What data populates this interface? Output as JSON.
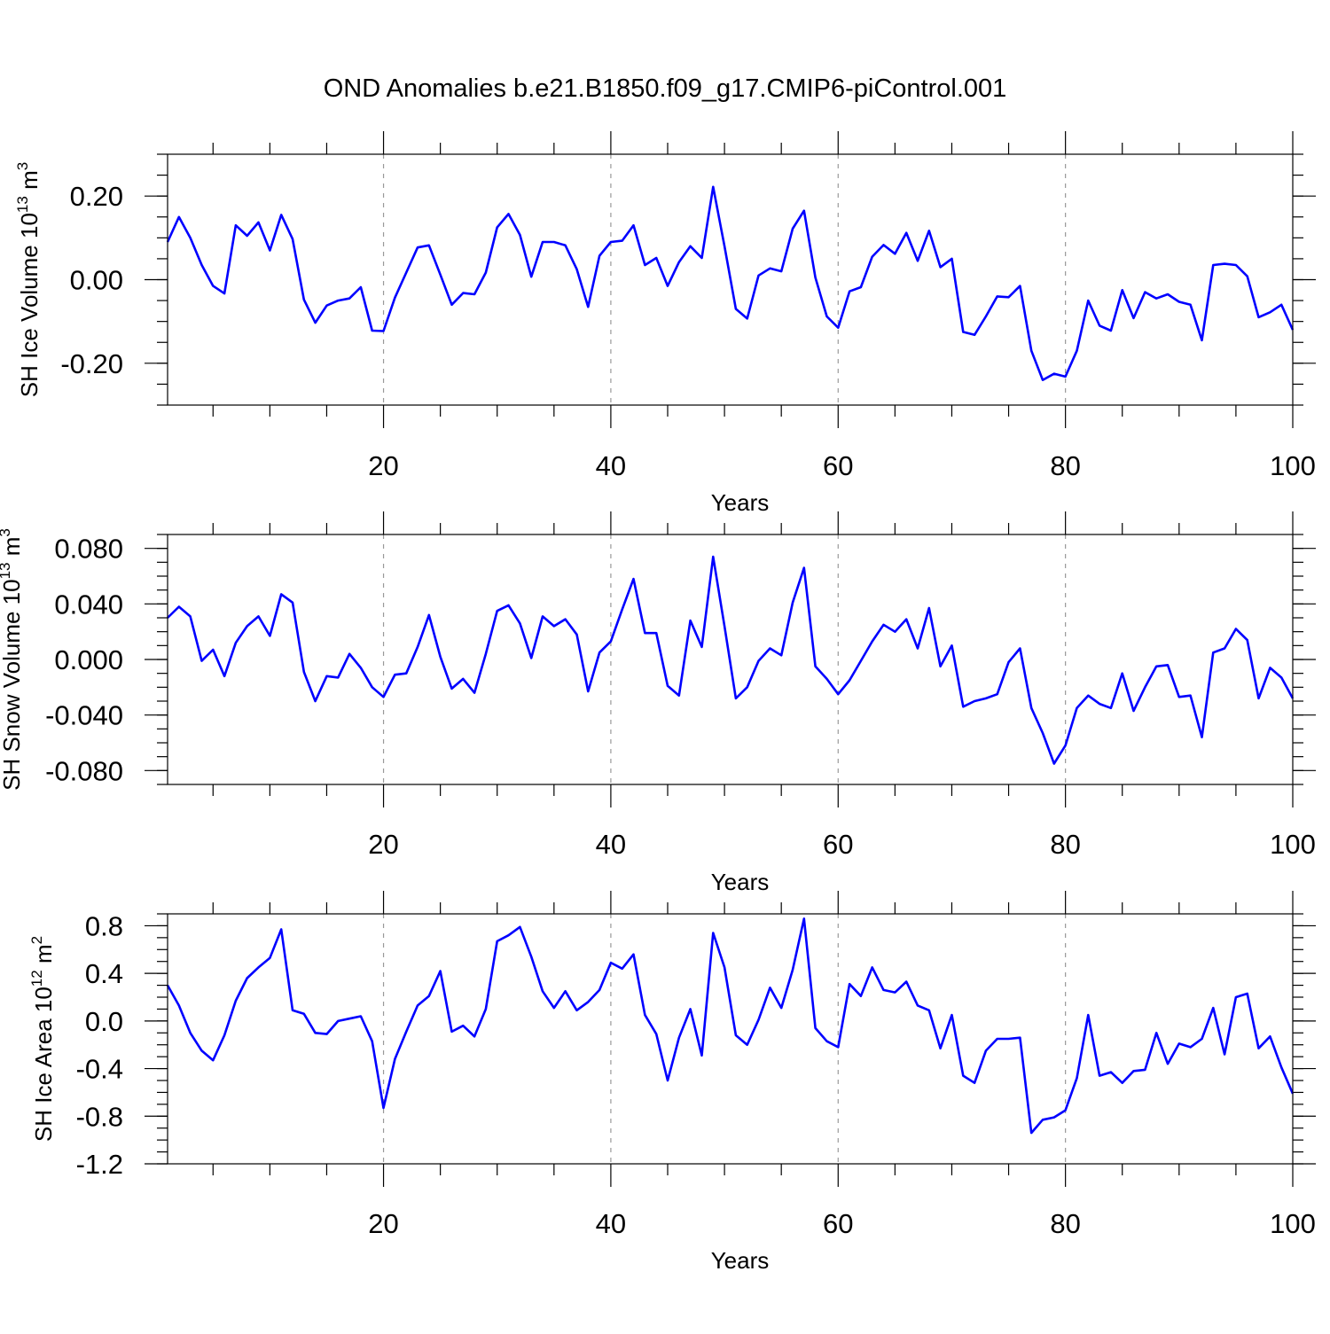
{
  "figure_title": "OND Anomalies b.e21.B1850.f09_g17.CMIP6-piControl.001",
  "colors": {
    "line": "#0000ff",
    "axis": "#000000",
    "grid": "#999999",
    "background": "#ffffff"
  },
  "chart_data": [
    {
      "type": "line",
      "title": "OND Anomalies b.e21.B1850.f09_g17.CMIP6-piControl.001",
      "xlabel": "Years",
      "ylabel_main": "SH Ice Volume 10",
      "ylabel_sup": "13",
      "ylabel_unit": " m",
      "ylabel_unit_sup": "3",
      "xlim": [
        1,
        100
      ],
      "ylim": [
        -0.3,
        0.3
      ],
      "x_ticks": [
        20,
        40,
        60,
        80,
        100
      ],
      "x_tick_labels": [
        "20",
        "40",
        "60",
        "80",
        "100"
      ],
      "y_ticks": [
        -0.2,
        0.0,
        0.2
      ],
      "y_tick_labels": [
        "-0.20",
        "0.00",
        "0.20"
      ],
      "y_minor_step": 0.05,
      "grid_x": [
        20,
        40,
        60,
        80
      ],
      "series": [
        {
          "name": "SH Ice Volume",
          "x": [
            1,
            2,
            3,
            4,
            5,
            6,
            7,
            8,
            9,
            10,
            11,
            12,
            13,
            14,
            15,
            16,
            17,
            18,
            19,
            20,
            21,
            22,
            23,
            24,
            25,
            26,
            27,
            28,
            29,
            30,
            31,
            32,
            33,
            34,
            35,
            36,
            37,
            38,
            39,
            40,
            41,
            42,
            43,
            44,
            45,
            46,
            47,
            48,
            49,
            50,
            51,
            52,
            53,
            54,
            55,
            56,
            57,
            58,
            59,
            60,
            61,
            62,
            63,
            64,
            65,
            66,
            67,
            68,
            69,
            70,
            71,
            72,
            73,
            74,
            75,
            76,
            77,
            78,
            79,
            80,
            81,
            82,
            83,
            84,
            85,
            86,
            87,
            88,
            89,
            90,
            91,
            92,
            93,
            94,
            95,
            96,
            97,
            98,
            99,
            100
          ],
          "values": [
            0.09,
            0.15,
            0.1,
            0.035,
            -0.015,
            -0.033,
            0.13,
            0.105,
            0.137,
            0.07,
            0.155,
            0.097,
            -0.048,
            -0.103,
            -0.062,
            -0.05,
            -0.045,
            -0.018,
            -0.122,
            -0.123,
            -0.043,
            0.017,
            0.077,
            0.082,
            0.012,
            -0.06,
            -0.032,
            -0.035,
            0.017,
            0.125,
            0.157,
            0.107,
            0.007,
            0.09,
            0.09,
            0.082,
            0.025,
            -0.065,
            0.057,
            0.09,
            0.093,
            0.13,
            0.035,
            0.052,
            -0.015,
            0.042,
            0.08,
            0.052,
            0.222,
            0.08,
            -0.07,
            -0.093,
            0.01,
            0.027,
            0.02,
            0.122,
            0.165,
            0.005,
            -0.088,
            -0.115,
            -0.028,
            -0.018,
            0.055,
            0.083,
            0.062,
            0.112,
            0.045,
            0.117,
            0.03,
            0.05,
            -0.125,
            -0.132,
            -0.088,
            -0.04,
            -0.042,
            -0.015,
            -0.17,
            -0.24,
            -0.225,
            -0.232,
            -0.17,
            -0.05,
            -0.11,
            -0.122,
            -0.025,
            -0.092,
            -0.03,
            -0.045,
            -0.035,
            -0.053,
            -0.06,
            -0.145,
            0.035,
            0.038,
            0.035,
            0.008,
            -0.09,
            -0.078,
            -0.06,
            -0.12
          ]
        }
      ]
    },
    {
      "type": "line",
      "xlabel": "Years",
      "ylabel_main": "SH Snow Volume 10",
      "ylabel_sup": "13",
      "ylabel_unit": " m",
      "ylabel_unit_sup": "3",
      "xlim": [
        1,
        100
      ],
      "ylim": [
        -0.09,
        0.09
      ],
      "x_ticks": [
        20,
        40,
        60,
        80,
        100
      ],
      "x_tick_labels": [
        "20",
        "40",
        "60",
        "80",
        "100"
      ],
      "y_ticks": [
        -0.08,
        -0.04,
        0.0,
        0.04,
        0.08
      ],
      "y_tick_labels": [
        "-0.080",
        "-0.040",
        "0.000",
        "0.040",
        "0.080"
      ],
      "y_minor_step": 0.01,
      "grid_x": [
        20,
        40,
        60,
        80
      ],
      "series": [
        {
          "name": "SH Snow Volume",
          "x": [
            1,
            2,
            3,
            4,
            5,
            6,
            7,
            8,
            9,
            10,
            11,
            12,
            13,
            14,
            15,
            16,
            17,
            18,
            19,
            20,
            21,
            22,
            23,
            24,
            25,
            26,
            27,
            28,
            29,
            30,
            31,
            32,
            33,
            34,
            35,
            36,
            37,
            38,
            39,
            40,
            41,
            42,
            43,
            44,
            45,
            46,
            47,
            48,
            49,
            50,
            51,
            52,
            53,
            54,
            55,
            56,
            57,
            58,
            59,
            60,
            61,
            62,
            63,
            64,
            65,
            66,
            67,
            68,
            69,
            70,
            71,
            72,
            73,
            74,
            75,
            76,
            77,
            78,
            79,
            80,
            81,
            82,
            83,
            84,
            85,
            86,
            87,
            88,
            89,
            90,
            91,
            92,
            93,
            94,
            95,
            96,
            97,
            98,
            99,
            100
          ],
          "values": [
            0.03,
            0.038,
            0.031,
            -0.001,
            0.007,
            -0.012,
            0.012,
            0.024,
            0.031,
            0.017,
            0.047,
            0.041,
            -0.009,
            -0.03,
            -0.012,
            -0.013,
            0.004,
            -0.006,
            -0.02,
            -0.027,
            -0.011,
            -0.01,
            0.009,
            0.032,
            0.002,
            -0.021,
            -0.014,
            -0.024,
            0.004,
            0.035,
            0.039,
            0.026,
            0.001,
            0.031,
            0.024,
            0.029,
            0.018,
            -0.023,
            0.005,
            0.013,
            0.036,
            0.058,
            0.019,
            0.019,
            -0.019,
            -0.026,
            0.028,
            0.009,
            0.074,
            0.024,
            -0.028,
            -0.02,
            -0.001,
            0.008,
            0.003,
            0.041,
            0.066,
            -0.005,
            -0.014,
            -0.025,
            -0.015,
            -0.001,
            0.013,
            0.025,
            0.02,
            0.029,
            0.008,
            0.037,
            -0.005,
            0.01,
            -0.034,
            -0.03,
            -0.028,
            -0.025,
            -0.002,
            0.008,
            -0.035,
            -0.053,
            -0.075,
            -0.062,
            -0.035,
            -0.026,
            -0.032,
            -0.035,
            -0.01,
            -0.037,
            -0.02,
            -0.005,
            -0.004,
            -0.027,
            -0.026,
            -0.056,
            0.005,
            0.008,
            0.022,
            0.014,
            -0.028,
            -0.006,
            -0.013,
            -0.028
          ]
        }
      ]
    },
    {
      "type": "line",
      "xlabel": "Years",
      "ylabel_main": "SH Ice Area 10",
      "ylabel_sup": "12",
      "ylabel_unit": " m",
      "ylabel_unit_sup": "2",
      "xlim": [
        1,
        100
      ],
      "ylim": [
        -1.2,
        0.9
      ],
      "x_ticks": [
        20,
        40,
        60,
        80,
        100
      ],
      "x_tick_labels": [
        "20",
        "40",
        "60",
        "80",
        "100"
      ],
      "y_ticks": [
        -1.2,
        -0.8,
        -0.4,
        0.0,
        0.4,
        0.8
      ],
      "y_tick_labels": [
        "-1.2",
        "-0.8",
        "-0.4",
        "0.0",
        "0.4",
        "0.8"
      ],
      "y_minor_step": 0.1,
      "grid_x": [
        20,
        40,
        60,
        80
      ],
      "series": [
        {
          "name": "SH Ice Area",
          "x": [
            1,
            2,
            3,
            4,
            5,
            6,
            7,
            8,
            9,
            10,
            11,
            12,
            13,
            14,
            15,
            16,
            17,
            18,
            19,
            20,
            21,
            22,
            23,
            24,
            25,
            26,
            27,
            28,
            29,
            30,
            31,
            32,
            33,
            34,
            35,
            36,
            37,
            38,
            39,
            40,
            41,
            42,
            43,
            44,
            45,
            46,
            47,
            48,
            49,
            50,
            51,
            52,
            53,
            54,
            55,
            56,
            57,
            58,
            59,
            60,
            61,
            62,
            63,
            64,
            65,
            66,
            67,
            68,
            69,
            70,
            71,
            72,
            73,
            74,
            75,
            76,
            77,
            78,
            79,
            80,
            81,
            82,
            83,
            84,
            85,
            86,
            87,
            88,
            89,
            90,
            91,
            92,
            93,
            94,
            95,
            96,
            97,
            98,
            99,
            100
          ],
          "values": [
            0.3,
            0.13,
            -0.1,
            -0.25,
            -0.33,
            -0.12,
            0.17,
            0.36,
            0.45,
            0.53,
            0.77,
            0.09,
            0.06,
            -0.1,
            -0.11,
            0.0,
            0.02,
            0.04,
            -0.17,
            -0.73,
            -0.32,
            -0.09,
            0.13,
            0.21,
            0.42,
            -0.09,
            -0.04,
            -0.13,
            0.1,
            0.67,
            0.72,
            0.79,
            0.54,
            0.25,
            0.11,
            0.25,
            0.09,
            0.16,
            0.26,
            0.49,
            0.44,
            0.56,
            0.05,
            -0.11,
            -0.5,
            -0.14,
            0.1,
            -0.29,
            0.74,
            0.45,
            -0.12,
            -0.2,
            0.01,
            0.28,
            0.11,
            0.43,
            0.86,
            -0.06,
            -0.17,
            -0.22,
            0.31,
            0.21,
            0.45,
            0.26,
            0.24,
            0.33,
            0.13,
            0.09,
            -0.23,
            0.05,
            -0.46,
            -0.52,
            -0.25,
            -0.15,
            -0.15,
            -0.14,
            -0.94,
            -0.83,
            -0.81,
            -0.75,
            -0.48,
            0.05,
            -0.46,
            -0.43,
            -0.52,
            -0.42,
            -0.41,
            -0.1,
            -0.36,
            -0.19,
            -0.22,
            -0.15,
            0.11,
            -0.28,
            0.2,
            0.23,
            -0.23,
            -0.13,
            -0.39,
            -0.61
          ]
        }
      ]
    }
  ]
}
